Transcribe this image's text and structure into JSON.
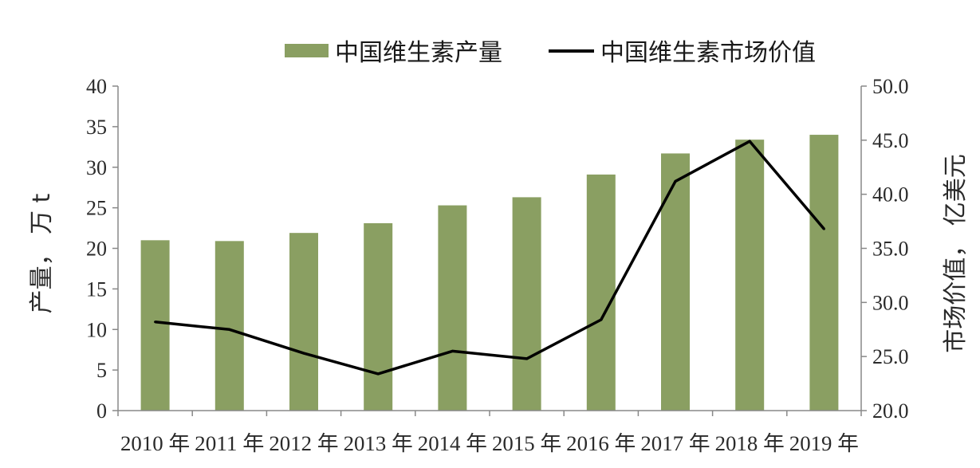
{
  "chart_data": {
    "type": "bar",
    "categories": [
      "2010 年",
      "2011 年",
      "2012 年",
      "2013 年",
      "2014 年",
      "2015 年",
      "2016 年",
      "2017 年",
      "2018 年",
      "2019 年"
    ],
    "series": [
      {
        "name": "中国维生素产量",
        "type": "bar",
        "axis": "left",
        "color": "#8a9f62",
        "values": [
          21.0,
          20.9,
          21.9,
          23.1,
          25.3,
          26.3,
          29.1,
          31.7,
          33.4,
          34.0
        ]
      },
      {
        "name": "中国维生素市场价值",
        "type": "line",
        "axis": "right",
        "color": "#000000",
        "values": [
          28.2,
          27.5,
          25.3,
          23.4,
          25.5,
          24.8,
          28.4,
          41.2,
          44.9,
          36.8
        ]
      }
    ],
    "ylabel": "产量， 万 t",
    "ylabel_right": "市场价值， 亿美元",
    "ylim": [
      0,
      40
    ],
    "ylim_right": [
      20.0,
      50.0
    ],
    "yticks": [
      "0",
      "5",
      "10",
      "15",
      "20",
      "25",
      "30",
      "35",
      "40"
    ],
    "yticks_right": [
      "20.0",
      "25.0",
      "30.0",
      "35.0",
      "40.0",
      "45.0",
      "50.0"
    ],
    "legend_position": "top-center",
    "grid": false
  }
}
